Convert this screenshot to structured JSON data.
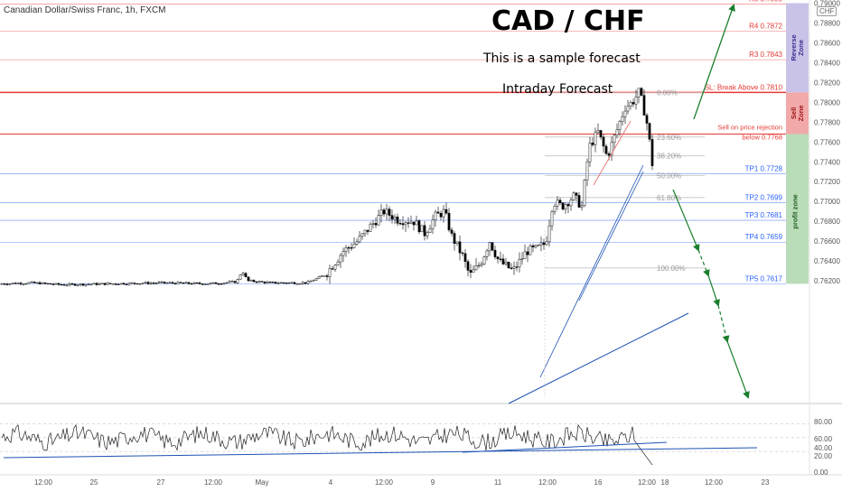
{
  "header": {
    "symbol_text": "Canadian Dollar/Swiss Franc, 1h, FXCM",
    "currency_badge": "CHF",
    "title": "CAD / CHF",
    "subtitle": "This is a sample forecast",
    "caption": "Intraday Forecast"
  },
  "colors": {
    "bull_candle": "#ffffff",
    "bear_candle": "#000000",
    "level_red": "#e53935",
    "level_blue": "#2962ff",
    "trend_blue": "#1e53b4",
    "arrow_green": "#1b7f2e",
    "reverse_zone": "#c9c3e8",
    "sell_zone": "#f2a9a9",
    "profit_zone": "#b9dcb9",
    "rsi_line": "#222222"
  },
  "zones": [
    {
      "label": "Reverse Zone",
      "from": 0.781,
      "to": 0.79,
      "color_key": "reverse_zone",
      "text_color": "#3b2d8f"
    },
    {
      "label": "Sell Zone",
      "from": 0.7768,
      "to": 0.781,
      "color_key": "sell_zone",
      "text_color": "#9e1414"
    },
    {
      "label": "profit zone",
      "from": 0.7617,
      "to": 0.7768,
      "color_key": "profit_zone",
      "text_color": "#1d5a1d"
    }
  ],
  "chart_data": {
    "type": "candlestick",
    "price_axis": {
      "min": 0.7614,
      "max": 0.7901,
      "tick_labels": [
        "0.79000",
        "0.78800",
        "0.78600",
        "0.78400",
        "0.78200",
        "0.78000",
        "0.77800",
        "0.77600",
        "0.77400",
        "0.77200",
        "0.77000",
        "0.76800",
        "0.76600",
        "0.76400",
        "0.76200"
      ],
      "tick_values": [
        0.79,
        0.788,
        0.786,
        0.784,
        0.782,
        0.78,
        0.778,
        0.776,
        0.774,
        0.772,
        0.77,
        0.768,
        0.766,
        0.764,
        0.762
      ]
    },
    "time_axis": {
      "labels": [
        "12:00",
        "25",
        "27",
        "12:00",
        "May",
        "4",
        "12:00",
        "9",
        "11",
        "12:00",
        "16",
        "12:00",
        "18",
        "12:00",
        "23"
      ]
    },
    "levels": [
      {
        "name": "R5",
        "label": "R5 0.7899",
        "value": 0.7899,
        "color_key": "level_red"
      },
      {
        "name": "R4",
        "label": "R4 0.7872",
        "value": 0.7872,
        "color_key": "level_red"
      },
      {
        "name": "R3",
        "label": "R3 0.7843",
        "value": 0.7843,
        "color_key": "level_red"
      },
      {
        "name": "SL",
        "label": "SL: Break Above 0.7810",
        "value": 0.781,
        "color_key": "level_red"
      },
      {
        "name": "Sell",
        "label": "Sell on price rejection",
        "label2": "below 0.7768",
        "value": 0.7768,
        "color_key": "level_red"
      },
      {
        "name": "TP1",
        "label": "TP1 0.7728",
        "value": 0.7728,
        "color_key": "level_blue"
      },
      {
        "name": "TP2",
        "label": "TP2 0.7699",
        "value": 0.7699,
        "color_key": "level_blue"
      },
      {
        "name": "TP3",
        "label": "TP3 0.7681",
        "value": 0.7681,
        "color_key": "level_blue"
      },
      {
        "name": "TP4",
        "label": "TP4 0.7659",
        "value": 0.7659,
        "color_key": "level_blue"
      },
      {
        "name": "TP5",
        "label": "TP5 0.7617",
        "value": 0.7617,
        "color_key": "level_blue"
      }
    ],
    "fibonacci": {
      "levels": [
        {
          "label": "0.00%",
          "value": 0.781
        },
        {
          "label": "23.60%",
          "value": 0.7765
        },
        {
          "label": "38.20%",
          "value": 0.7746
        },
        {
          "label": "50.00%",
          "value": 0.7726
        },
        {
          "label": "61.80%",
          "value": 0.7704
        },
        {
          "label": "100.00%",
          "value": 0.7633
        }
      ]
    },
    "rsi": {
      "tick_labels": [
        "80.00",
        "60.00",
        "40.00",
        "20.00",
        "0.00"
      ],
      "tick_values": [
        80,
        60,
        40,
        20,
        0
      ],
      "bands": [
        70,
        50,
        30
      ]
    },
    "forecast_path": "bullish breakout to R5 from SL, otherwise stepwise decline to TP1 through TP5"
  }
}
